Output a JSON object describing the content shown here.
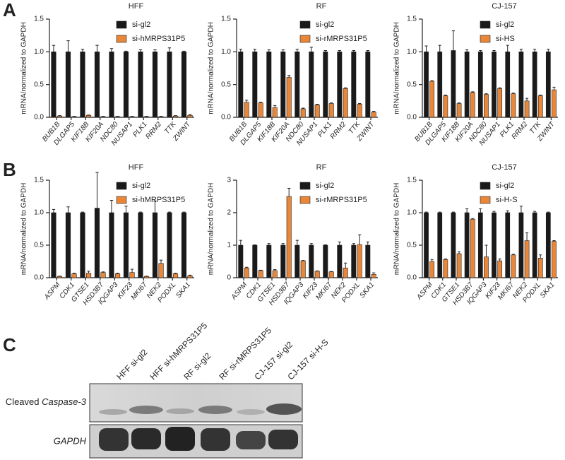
{
  "panel_labels": [
    "A",
    "B",
    "C"
  ],
  "chart_data": [
    {
      "type": "bar",
      "title": "HFF",
      "y_label": "mRNA/normalized to GAPDH",
      "categories": [
        "BUB1B",
        "DLGAP5",
        "KIF18B",
        "KIF20A",
        "NDC80",
        "NUSAP1",
        "PLK1",
        "RRM2",
        "TTK",
        "ZWINT"
      ],
      "series": [
        {
          "name": "si-gl2",
          "color": "#1a1a1a",
          "values": [
            1.0,
            1.0,
            1.0,
            1.0,
            1.0,
            1.0,
            1.0,
            1.0,
            1.0,
            1.0
          ],
          "errors": [
            0.1,
            0.17,
            0.04,
            0.1,
            0.05,
            0.01,
            0.03,
            0.03,
            0.06,
            0.01
          ]
        },
        {
          "name": "si-hMRPS31P5",
          "color": "#e8873a",
          "values": [
            0.02,
            0.01,
            0.03,
            0.01,
            0.01,
            0.01,
            0.01,
            0.01,
            0.02,
            0.03
          ],
          "errors": [
            0.005,
            0.005,
            0.005,
            0.005,
            0.005,
            0.005,
            0.005,
            0.005,
            0.005,
            0.01
          ]
        }
      ],
      "ylim": [
        0,
        1.5
      ],
      "yticks": [
        {
          "value": 0,
          "label": "0.0"
        },
        0.5,
        {
          "value": 1,
          "label": "1.0"
        },
        1.5
      ]
    },
    {
      "type": "bar",
      "title": "RF",
      "y_label": "mRNA/normalized to GAPDH",
      "categories": [
        "BUB1B",
        "DLGAP5",
        "KIF18B",
        "KIF20A",
        "NDC80",
        "NUSAP1",
        "PLK1",
        "RRM2",
        "TTK",
        "ZWINT"
      ],
      "series": [
        {
          "name": "si-gl2",
          "color": "#1a1a1a",
          "values": [
            1.0,
            1.0,
            1.0,
            1.0,
            1.0,
            1.0,
            1.0,
            1.0,
            1.0,
            1.0
          ],
          "errors": [
            0.04,
            0.04,
            0.03,
            0.03,
            0.04,
            0.07,
            0.02,
            0.02,
            0.02,
            0.02
          ]
        },
        {
          "name": "si-rMRPS31P5",
          "color": "#e8873a",
          "values": [
            0.23,
            0.22,
            0.15,
            0.61,
            0.13,
            0.19,
            0.21,
            0.44,
            0.2,
            0.08
          ],
          "errors": [
            0.03,
            0.01,
            0.03,
            0.03,
            0.01,
            0.01,
            0.01,
            0.01,
            0.01,
            0.01
          ]
        }
      ],
      "ylim": [
        0,
        1.5
      ],
      "yticks": [
        {
          "value": 0,
          "label": "0.0"
        },
        0.5,
        {
          "value": 1,
          "label": "1.0"
        },
        1.5
      ]
    },
    {
      "type": "bar",
      "title": "CJ-157",
      "y_label": "mRNA/normalized to GAPDH",
      "categories": [
        "BUB1B",
        "DLGAP5",
        "KIF18B",
        "KIF20A",
        "NDC80",
        "NUSAP1",
        "PLK1",
        "RRM2",
        "TTK",
        "ZWINT"
      ],
      "series": [
        {
          "name": "si-gl2",
          "color": "#1a1a1a",
          "values": [
            1.0,
            1.0,
            1.02,
            1.0,
            1.0,
            1.0,
            1.0,
            1.0,
            1.0,
            1.0
          ],
          "errors": [
            0.09,
            0.1,
            0.3,
            0.03,
            0.02,
            0.02,
            0.1,
            0.04,
            0.04,
            0.04
          ]
        },
        {
          "name": "si-HS",
          "color": "#e8873a",
          "values": [
            0.55,
            0.33,
            0.21,
            0.38,
            0.35,
            0.44,
            0.36,
            0.25,
            0.33,
            0.42
          ],
          "errors": [
            0.01,
            0.01,
            0.01,
            0.01,
            0.01,
            0.01,
            0.01,
            0.04,
            0.01,
            0.04
          ]
        }
      ],
      "ylim": [
        0,
        1.5
      ],
      "yticks": [
        {
          "value": 0,
          "label": "0.0"
        },
        0.5,
        {
          "value": 1,
          "label": "1.0"
        },
        1.5
      ]
    },
    {
      "type": "bar",
      "title": "HFF",
      "y_label": "mRNA/normalized to GAPDH",
      "categories": [
        "ASPM",
        "CDK1",
        "GTSE1",
        "HSD3B7",
        "IQGAP3",
        "KIF23",
        "MKI67",
        "NEK2",
        "PODXL",
        "SKA1"
      ],
      "series": [
        {
          "name": "si-gl2",
          "color": "#1a1a1a",
          "values": [
            1.0,
            1.0,
            1.0,
            1.07,
            1.0,
            1.0,
            1.0,
            1.0,
            1.0,
            1.0
          ],
          "errors": [
            0.05,
            0.09,
            0.01,
            0.55,
            0.19,
            0.1,
            0.01,
            0.18,
            0.01,
            0.01
          ]
        },
        {
          "name": "si-hMRPS31P5",
          "color": "#e8873a",
          "values": [
            0.02,
            0.06,
            0.07,
            0.08,
            0.06,
            0.08,
            0.02,
            0.22,
            0.06,
            0.03
          ],
          "errors": [
            0.005,
            0.01,
            0.03,
            0.01,
            0.01,
            0.05,
            0.005,
            0.05,
            0.01,
            0.01
          ]
        }
      ],
      "ylim": [
        0,
        1.5
      ],
      "yticks": [
        {
          "value": 0,
          "label": "0.0"
        },
        0.5,
        {
          "value": 1,
          "label": "1.0"
        },
        1.5
      ]
    },
    {
      "type": "bar",
      "title": "RF",
      "y_label": "mRNA/normalized to GAPDH",
      "categories": [
        "ASPM",
        "CDK1",
        "GTSE1",
        "HSD3B7",
        "IQGAP3",
        "KIF23",
        "MKI67",
        "NEK2",
        "PODXL",
        "SKA1"
      ],
      "series": [
        {
          "name": "si-gl2",
          "color": "#1a1a1a",
          "values": [
            1.0,
            1.0,
            1.0,
            1.0,
            1.0,
            1.0,
            1.0,
            1.0,
            1.0,
            1.0
          ],
          "errors": [
            0.15,
            0.01,
            0.05,
            0.05,
            0.15,
            0.05,
            0.01,
            0.1,
            0.05,
            0.1
          ]
        },
        {
          "name": "si-rMRPS31P5",
          "color": "#e8873a",
          "values": [
            0.3,
            0.22,
            0.22,
            2.5,
            0.52,
            0.2,
            0.18,
            0.3,
            1.02,
            0.1
          ],
          "errors": [
            0.02,
            0.01,
            0.03,
            0.25,
            0.01,
            0.01,
            0.01,
            0.15,
            0.3,
            0.05
          ]
        }
      ],
      "ylim": [
        0,
        3
      ],
      "yticks": [
        0,
        1,
        2,
        3
      ]
    },
    {
      "type": "bar",
      "title": "CJ-157",
      "y_label": "mRNA/normalized to GAPDH",
      "categories": [
        "ASPM",
        "CDK1",
        "GTSE1",
        "HSD3B7",
        "IQGAP3",
        "KIF23",
        "MKI67",
        "NEK2",
        "PODXL",
        "SKA1"
      ],
      "series": [
        {
          "name": "si-gl2",
          "color": "#1a1a1a",
          "values": [
            1.0,
            1.0,
            1.0,
            1.0,
            1.0,
            1.0,
            1.0,
            1.0,
            1.0,
            1.0
          ],
          "errors": [
            0.01,
            0.01,
            0.01,
            0.06,
            0.06,
            0.02,
            0.03,
            0.1,
            0.02,
            0.01
          ]
        },
        {
          "name": "si-H-S",
          "color": "#e8873a",
          "values": [
            0.25,
            0.28,
            0.37,
            0.9,
            0.32,
            0.26,
            0.35,
            0.57,
            0.3,
            0.56
          ],
          "errors": [
            0.03,
            0.01,
            0.03,
            0.01,
            0.18,
            0.03,
            0.01,
            0.12,
            0.05,
            0.01
          ]
        }
      ],
      "ylim": [
        0,
        1.5
      ],
      "yticks": [
        {
          "value": 0,
          "label": "0.0"
        },
        0.5,
        {
          "value": 1,
          "label": "1.0"
        },
        1.5
      ]
    }
  ],
  "blot": {
    "lanes": [
      "HFF si-gl2",
      "HFF si-hMRPS31P5",
      "RF si-gl2",
      "RF si-rMRPS31P5",
      "CJ-157 si-gl2",
      "CJ-157 si-H-S"
    ],
    "rows": [
      [
        "Cleaved",
        "Caspase-3"
      ],
      [
        "GAPDH"
      ]
    ]
  }
}
